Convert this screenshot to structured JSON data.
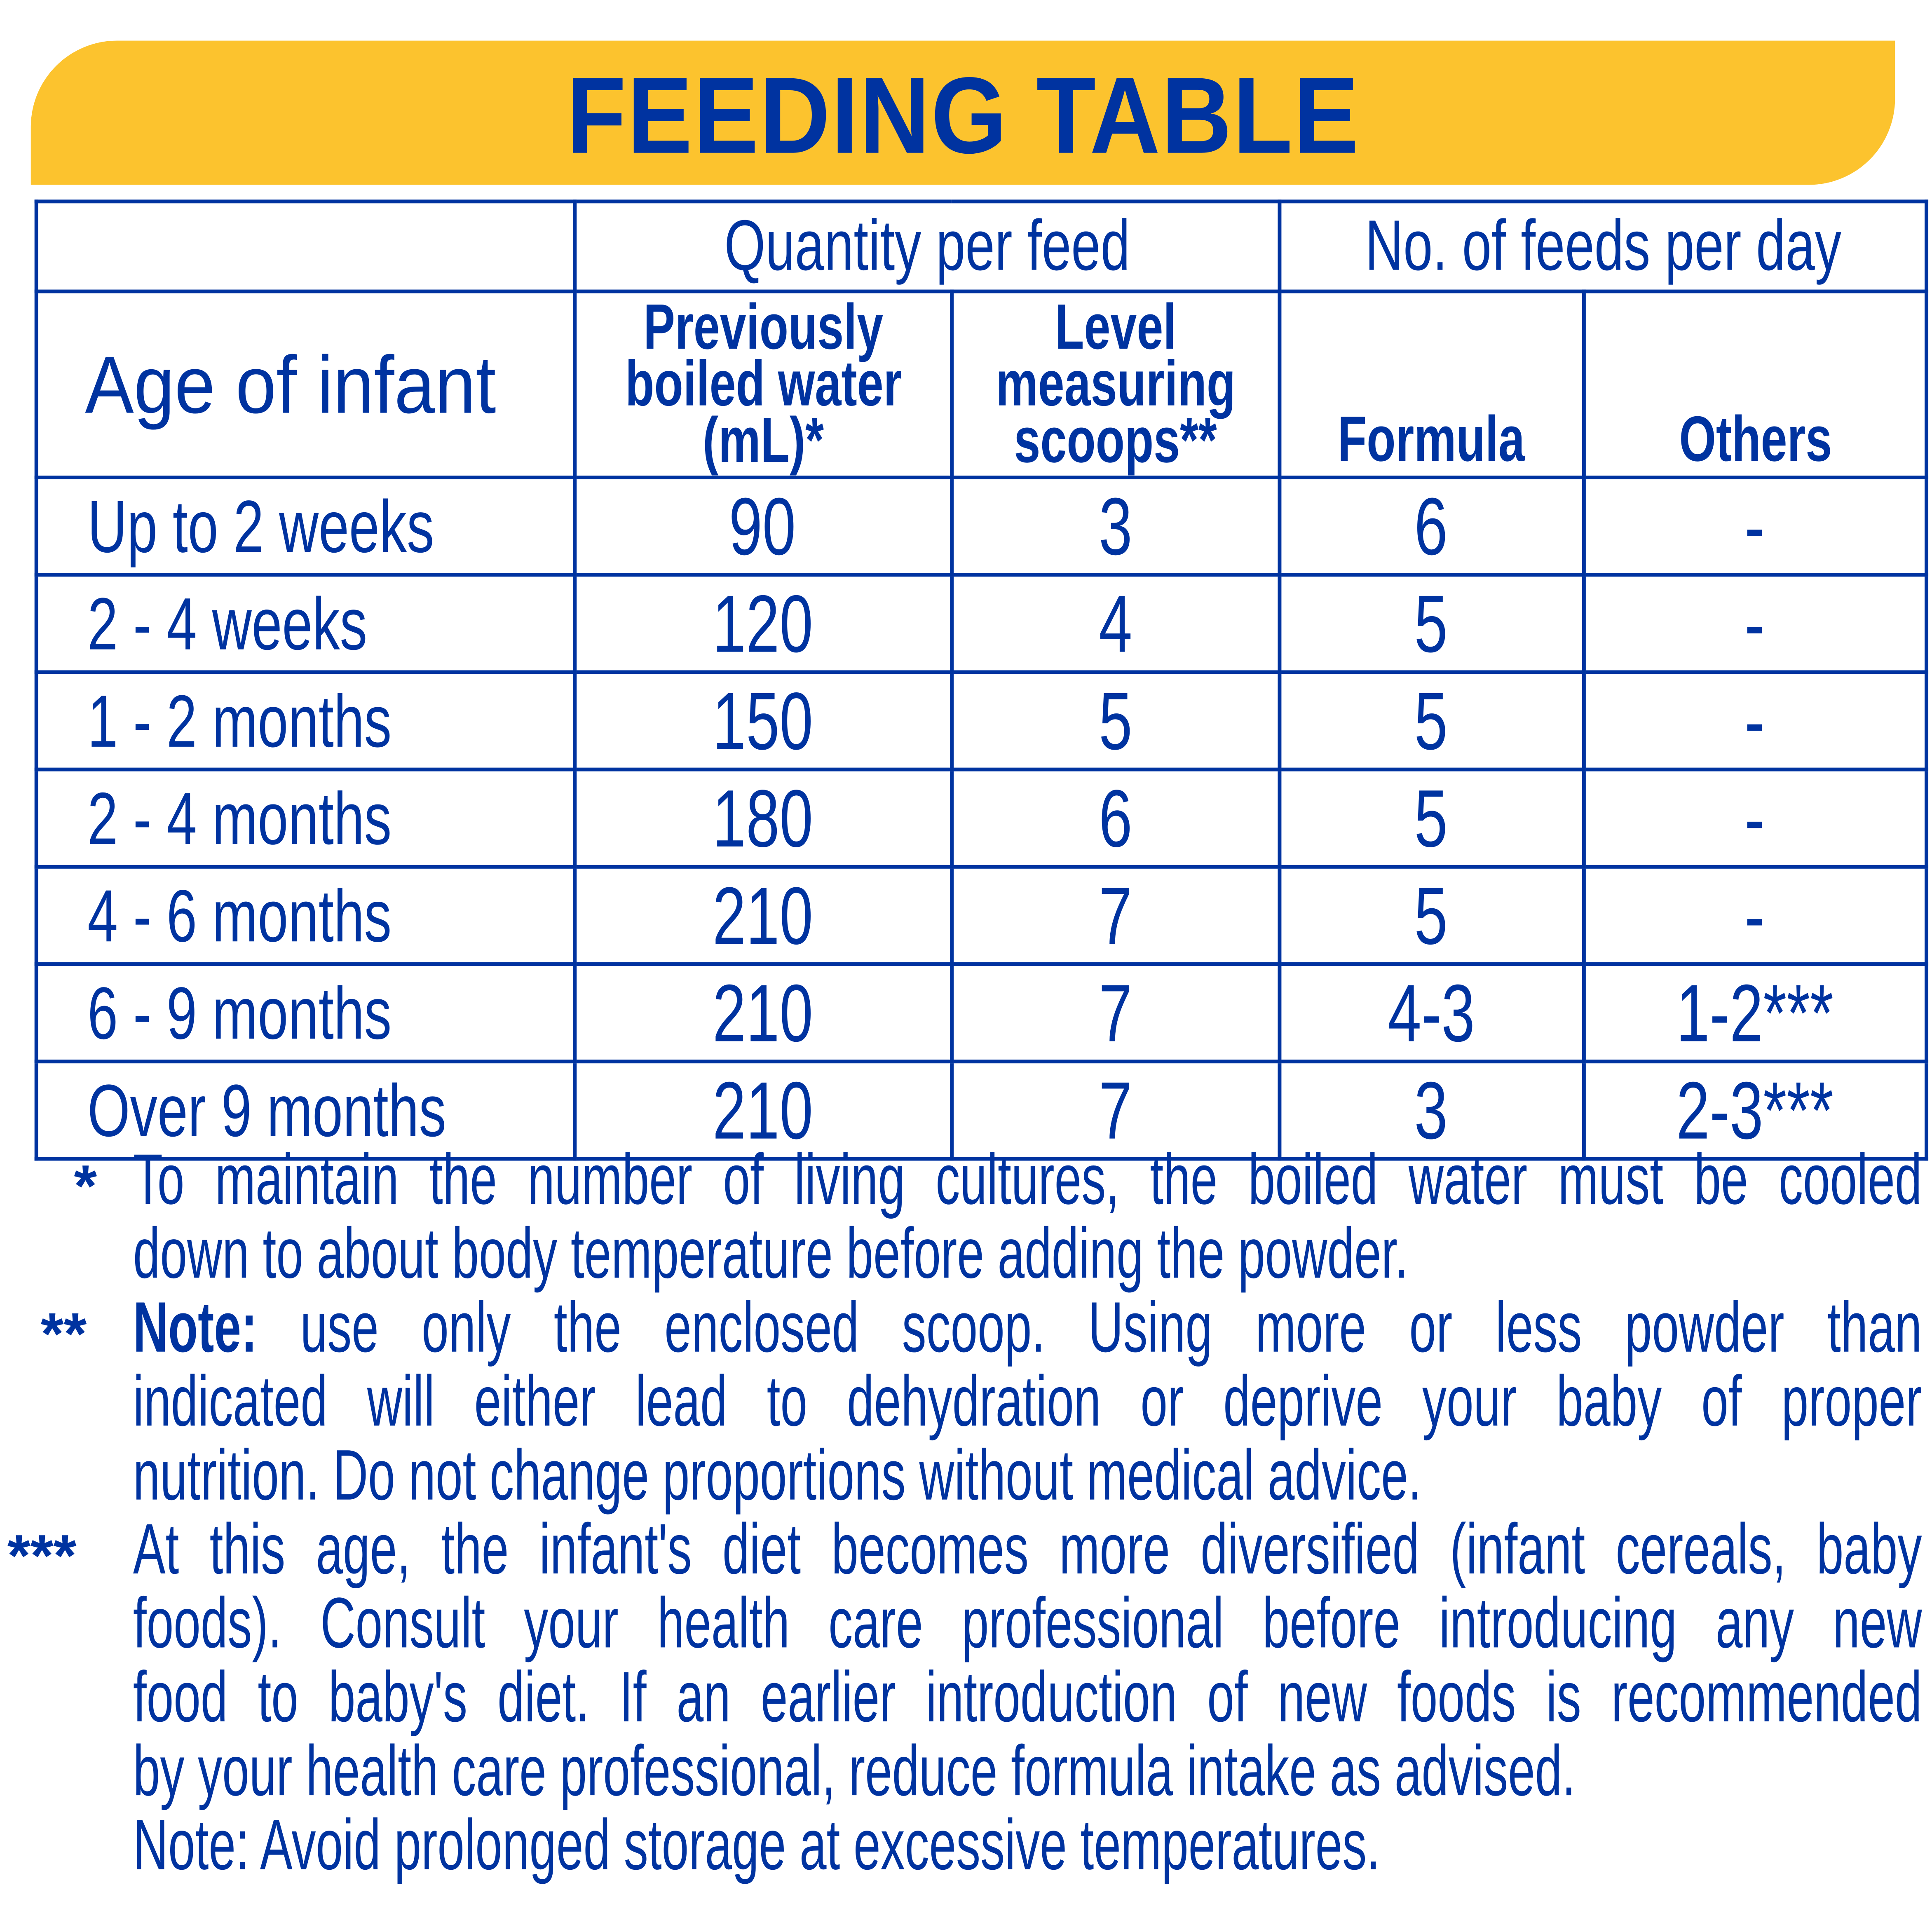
{
  "title": "FEEDING TABLE",
  "colors": {
    "brand_blue": "#0033A0",
    "banner_yellow": "#FCC32E"
  },
  "table": {
    "group_headers": {
      "quantity": "Quantity per feed",
      "feeds": "No. of feeds per day"
    },
    "headers": {
      "age": "Age of infant",
      "water": [
        "Previously",
        "boiled water",
        "(mL)*"
      ],
      "scoops": [
        "Level",
        "measuring",
        "scoops**"
      ],
      "formula": "Formula",
      "others": "Others"
    },
    "rows": [
      {
        "age": "Up to 2 weeks",
        "water": "90",
        "scoops": "3",
        "formula": "6",
        "others": "-"
      },
      {
        "age": "2 - 4 weeks",
        "water": "120",
        "scoops": "4",
        "formula": "5",
        "others": "-"
      },
      {
        "age": "1 - 2 months",
        "water": "150",
        "scoops": "5",
        "formula": "5",
        "others": "-"
      },
      {
        "age": "2 - 4 months",
        "water": "180",
        "scoops": "6",
        "formula": "5",
        "others": "-"
      },
      {
        "age": "4 - 6 months",
        "water": "210",
        "scoops": "7",
        "formula": "5",
        "others": "-"
      },
      {
        "age": "6 - 9 months",
        "water": "210",
        "scoops": "7",
        "formula": "4-3",
        "others": "1-2***"
      },
      {
        "age": "Over 9 months",
        "water": "210",
        "scoops": "7",
        "formula": "3",
        "others": "2-3***"
      }
    ]
  },
  "notes": {
    "marks": [
      "*",
      "**",
      "***"
    ],
    "n1": [
      "To maintain the number of living cultures, the boiled water must be cooled",
      "down to about body temperature before adding the powder."
    ],
    "n2_bold": "Note:",
    "n2": [
      " use only the enclosed scoop. Using more or less powder than",
      "indicated will either lead to dehydration or deprive your baby of proper",
      "nutrition. Do not change proportions without medical advice."
    ],
    "n3": [
      "At this age, the infant's diet becomes more diversified (infant cereals, baby",
      "foods). Consult your health care professional before introducing any new",
      "food to baby's diet. If an earlier introduction of new foods is recommended",
      "by your health care professional, reduce formula intake as advised."
    ],
    "final": "Note: Avoid prolonged storage at excessive temperatures."
  }
}
